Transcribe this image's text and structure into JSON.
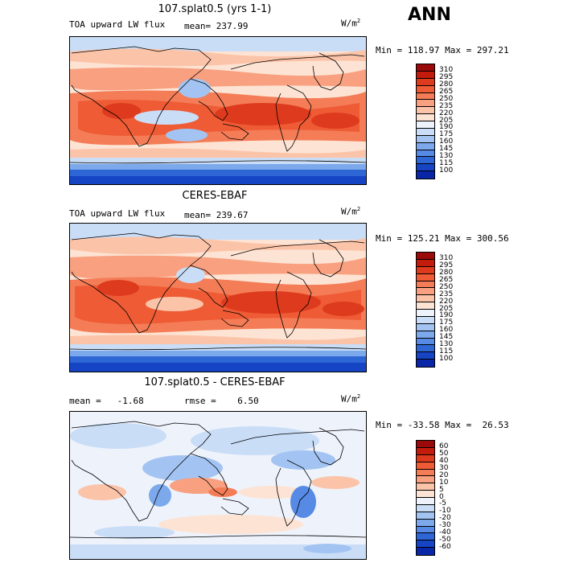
{
  "season": "ANN",
  "panels": [
    {
      "title": "107.splat0.5 (yrs 1-1)",
      "left_label": "TOA upward LW flux",
      "stat_label": "mean= 237.99",
      "units": "W/m",
      "units_sup": "2",
      "minmax": "Min = 118.97 Max = 297.21",
      "colorbar": {
        "labels": [
          "310",
          "295",
          "280",
          "265",
          "250",
          "235",
          "220",
          "205",
          "190",
          "175",
          "160",
          "145",
          "130",
          "115",
          "100"
        ],
        "colors": [
          "#9b0a0a",
          "#c31b0c",
          "#de3b1e",
          "#ee5b35",
          "#f47d57",
          "#f8a07f",
          "#fbc4a9",
          "#fde3d3",
          "#eef2fb",
          "#c9ddf7",
          "#a3c4f2",
          "#7ca8ec",
          "#568ae4",
          "#2f66d6",
          "#1544c5",
          "#0a26a8"
        ]
      }
    },
    {
      "title": "CERES-EBAF",
      "left_label": "TOA upward LW flux",
      "stat_label": "mean= 239.67",
      "units": "W/m",
      "units_sup": "2",
      "minmax": "Min = 125.21 Max = 300.56",
      "colorbar": {
        "labels": [
          "310",
          "295",
          "280",
          "265",
          "250",
          "235",
          "220",
          "205",
          "190",
          "175",
          "160",
          "145",
          "130",
          "115",
          "100"
        ],
        "colors": [
          "#9b0a0a",
          "#c31b0c",
          "#de3b1e",
          "#ee5b35",
          "#f47d57",
          "#f8a07f",
          "#fbc4a9",
          "#fde3d3",
          "#eef2fb",
          "#c9ddf7",
          "#a3c4f2",
          "#7ca8ec",
          "#568ae4",
          "#2f66d6",
          "#1544c5",
          "#0a26a8"
        ]
      }
    },
    {
      "title": "107.splat0.5 - CERES-EBAF",
      "left_label": "mean =   -1.68",
      "stat_label": "rmse =    6.50",
      "units": "W/m",
      "units_sup": "2",
      "minmax": "Min = -33.58 Max =  26.53",
      "colorbar": {
        "labels": [
          "60",
          "50",
          "40",
          "30",
          "20",
          "10",
          "5",
          "0",
          "-5",
          "-10",
          "-20",
          "-30",
          "-40",
          "-50",
          "-60"
        ],
        "colors": [
          "#9b0a0a",
          "#c31b0c",
          "#de3b1e",
          "#ee5b35",
          "#f47d57",
          "#f8a07f",
          "#fbc4a9",
          "#fde3d3",
          "#eef2fb",
          "#c9ddf7",
          "#a3c4f2",
          "#7ca8ec",
          "#568ae4",
          "#2f66d6",
          "#1544c5",
          "#0a26a8"
        ]
      }
    }
  ]
}
